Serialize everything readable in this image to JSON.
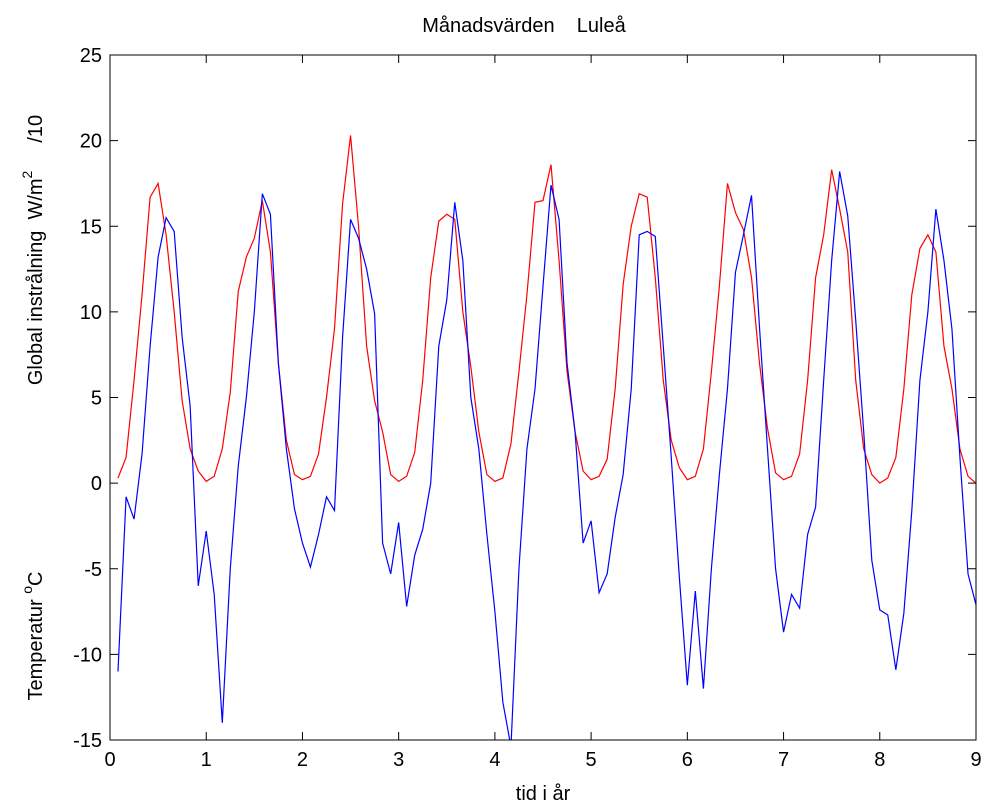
{
  "chart_data": {
    "type": "line",
    "title": "Månadsvärden    Luleå",
    "xlabel": "tid i år",
    "ylabel_radiation": {
      "text": "Global instrålning  W/m",
      "sup": "2",
      "suffix": "/10"
    },
    "ylabel_temperature": {
      "text": "Temperatur ",
      "sup": "o",
      "suffix": "C"
    },
    "xlim": [
      0,
      9
    ],
    "xticks": [
      0,
      1,
      2,
      3,
      4,
      5,
      6,
      7,
      8,
      9
    ],
    "ylim": [
      -15,
      25
    ],
    "yticks": [
      -15,
      -10,
      -5,
      0,
      5,
      10,
      15,
      20,
      25
    ],
    "grid": false,
    "x": [
      0.083,
      0.167,
      0.25,
      0.333,
      0.417,
      0.5,
      0.583,
      0.667,
      0.75,
      0.833,
      0.917,
      1,
      1.083,
      1.167,
      1.25,
      1.333,
      1.417,
      1.5,
      1.583,
      1.667,
      1.75,
      1.833,
      1.917,
      2,
      2.083,
      2.167,
      2.25,
      2.333,
      2.417,
      2.5,
      2.583,
      2.667,
      2.75,
      2.833,
      2.917,
      3,
      3.083,
      3.167,
      3.25,
      3.333,
      3.417,
      3.5,
      3.583,
      3.667,
      3.75,
      3.833,
      3.917,
      4,
      4.083,
      4.167,
      4.25,
      4.333,
      4.417,
      4.5,
      4.583,
      4.667,
      4.75,
      4.833,
      4.917,
      5,
      5.083,
      5.167,
      5.25,
      5.333,
      5.417,
      5.5,
      5.583,
      5.667,
      5.75,
      5.833,
      5.917,
      6,
      6.083,
      6.167,
      6.25,
      6.333,
      6.417,
      6.5,
      6.583,
      6.667,
      6.75,
      6.833,
      6.917,
      7,
      7.083,
      7.167,
      7.25,
      7.333,
      7.417,
      7.5,
      7.583,
      7.667,
      7.75,
      7.833,
      7.917,
      8,
      8.083,
      8.167,
      8.25,
      8.333,
      8.417,
      8.5,
      8.583,
      8.667,
      8.75,
      8.833,
      8.917,
      9
    ],
    "series": [
      {
        "color": "#ff0000",
        "values": [
          0.3,
          1.5,
          6,
          11,
          16.7,
          17.5,
          14.5,
          10,
          4.8,
          2,
          0.7,
          0.1,
          0.4,
          2,
          5.3,
          11.2,
          13.2,
          14.3,
          16.5,
          13.5,
          7,
          2.5,
          0.5,
          0.2,
          0.4,
          1.7,
          5,
          9,
          16.3,
          20.3,
          15,
          8,
          4.8,
          3,
          0.5,
          0.1,
          0.4,
          1.8,
          6,
          12,
          15.3,
          15.7,
          15.4,
          10,
          6.8,
          3,
          0.5,
          0.1,
          0.3,
          2.3,
          6.5,
          11,
          16.4,
          16.5,
          18.6,
          13,
          6.5,
          3,
          0.7,
          0.2,
          0.4,
          1.4,
          5.5,
          11.6,
          15,
          16.9,
          16.7,
          12,
          6,
          2.5,
          0.9,
          0.2,
          0.4,
          2,
          6.5,
          11.5,
          17.5,
          15.8,
          14.8,
          12,
          7,
          3.2,
          0.6,
          0.2,
          0.4,
          1.7,
          6,
          12,
          14.5,
          18.3,
          16,
          13.5,
          6,
          2,
          0.5,
          0,
          0.3,
          1.5,
          5.5,
          11,
          13.7,
          14.5,
          13.5,
          8,
          5.5,
          2,
          0.4,
          0
        ]
      },
      {
        "color": "#0000ff",
        "values": [
          -11,
          -0.8,
          -2.1,
          1.7,
          8,
          13.2,
          15.5,
          14.7,
          8.5,
          4.5,
          -6,
          -2.8,
          -6.5,
          -14,
          -5,
          1,
          5,
          10,
          16.9,
          15.7,
          7,
          2,
          -1.5,
          -3.5,
          -4.9,
          -3,
          -0.8,
          -1.6,
          8.5,
          15.4,
          14.3,
          12.5,
          9.9,
          -3.5,
          -5.3,
          -2.3,
          -7.2,
          -4.2,
          -2.7,
          0,
          8,
          10.7,
          16.4,
          13,
          5,
          2,
          -3,
          -7.5,
          -12.8,
          -15.4,
          -5,
          2,
          5.5,
          11.5,
          17.4,
          15.4,
          7,
          3,
          -3.5,
          -2.2,
          -6.4,
          -5.3,
          -2,
          0.5,
          5.5,
          14.5,
          14.7,
          14.4,
          8,
          1.5,
          -5.5,
          -11.8,
          -6.3,
          -12,
          -5,
          0.5,
          5.5,
          12.3,
          14.5,
          16.8,
          9.1,
          2,
          -5,
          -8.7,
          -6.5,
          -7.3,
          -3,
          -1.4,
          6,
          13,
          18.2,
          15.6,
          9.5,
          3,
          -4.5,
          -7.4,
          -7.7,
          -10.9,
          -7.6,
          -1.6,
          6,
          10,
          16,
          13,
          9,
          1.5,
          -5.3,
          -7.1
        ]
      }
    ]
  }
}
